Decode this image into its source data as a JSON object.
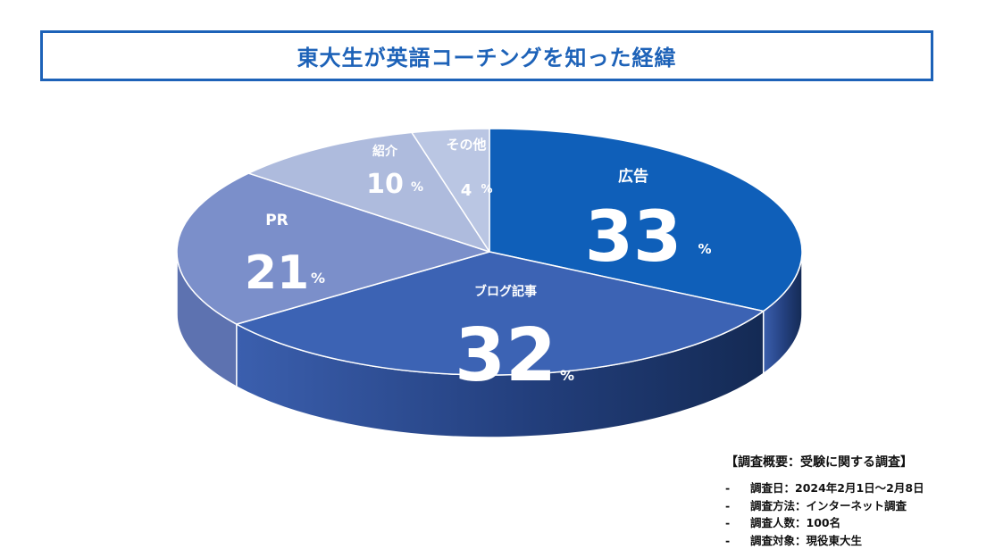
{
  "title": "東大生が英語コーチングを知った経緯",
  "chart_data": {
    "type": "pie",
    "title": "東大生が英語コーチングを知った経緯",
    "unit": "%",
    "slices": [
      {
        "label": "広告",
        "value": 33,
        "color": "#0f5fb9"
      },
      {
        "label": "ブログ記事",
        "value": 32,
        "color": "#3c63b4"
      },
      {
        "label": "PR",
        "value": 21,
        "color": "#7b8fca"
      },
      {
        "label": "紹介",
        "value": 10,
        "color": "#aebbdd"
      },
      {
        "label": "その他",
        "value": 4,
        "color": "#bac6e3"
      }
    ]
  },
  "notes": {
    "title": "【調査概要：受験に関する調査】",
    "dash": "-",
    "items": [
      "調査日：2024年2月1日〜2月8日",
      "調査方法：インターネット調査",
      "調査人数：100名",
      "調査対象：現役東大生"
    ]
  }
}
